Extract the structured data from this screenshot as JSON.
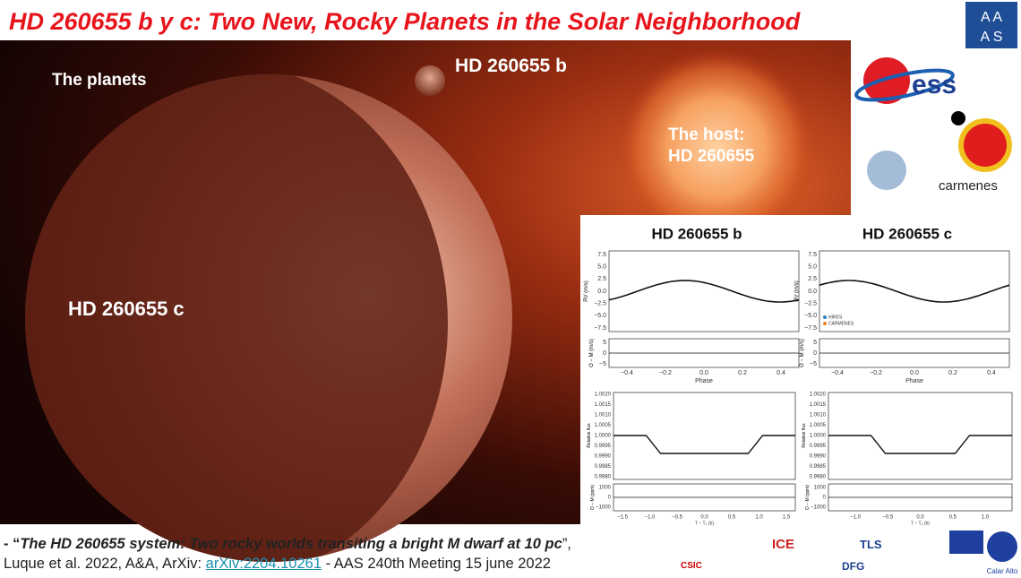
{
  "header": {
    "title": "HD 260655 b y c: Two New, Rocky Planets in the Solar Neighborhood"
  },
  "image_labels": {
    "planets": "The planets",
    "planet_b": "HD 260655 b",
    "host_line1": "The host:",
    "host_line2": "HD 260655",
    "planet_c": "HD 260655 c"
  },
  "logos": {
    "aas_top": "A  A",
    "aas_bottom": "A  S",
    "tess": "ess",
    "carmenes": "carmenes",
    "csic": "CSIC",
    "ice": "ICE",
    "tls": "TLS",
    "dfg": "DFG",
    "calar_alto": "Calar Alto"
  },
  "figure": {
    "panels": [
      {
        "title": "HD 260655 b",
        "time_ticks": [
          "−1.5",
          "−1.0",
          "−0.5",
          "0.0",
          "0.5",
          "1.0",
          "1.5"
        ]
      },
      {
        "title": "HD 260655 c",
        "time_ticks": [
          "−1.0",
          "−0.5",
          "0.0",
          "0.5",
          "1.0"
        ]
      }
    ],
    "rv_ylabel": "RV (m/s)",
    "rv_yticks": [
      "7.5",
      "5.0",
      "2.5",
      "0.0",
      "−2.5",
      "−5.0",
      "−7.5"
    ],
    "oc_ylabel": "O − M (m/s)",
    "oc_yticks": [
      "5",
      "0",
      "−5"
    ],
    "phase_label": "Phase",
    "phase_ticks": [
      "−0.4",
      "−0.2",
      "0.0",
      "0.2",
      "0.4"
    ],
    "legend": [
      "HIRES",
      "CARMENES"
    ],
    "flux_ylabel": "Relative flux",
    "flux_ticks": [
      "1.0020",
      "1.0015",
      "1.0010",
      "1.0005",
      "1.0000",
      "0.9995",
      "0.9990",
      "0.9985",
      "0.9980"
    ],
    "resid_ylabel": "O − M (ppm)",
    "resid_ticks": [
      "1000",
      "0",
      "−1000"
    ],
    "time_label": "T − T₀ (h)"
  },
  "citation": {
    "prefix": "- “",
    "title": "The HD 260655 system: Two rocky worlds transiting a bright M dwarf at 10 pc",
    "suffix": "”,",
    "authors": "Luque  et al. 2022, A&A, ArXiv: ",
    "link": "arXiv:2204.10261",
    "meeting": " - AAS 240th Meeting 15 june 2022"
  }
}
